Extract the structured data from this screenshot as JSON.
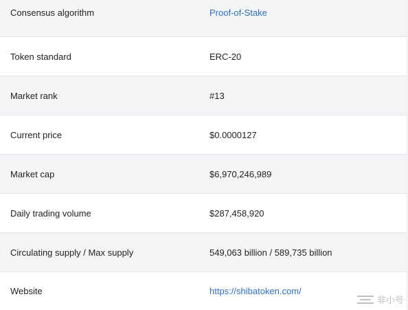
{
  "rows": [
    {
      "label": "Consensus algorithm",
      "value": "Proof-of-Stake",
      "is_link": true
    },
    {
      "label": "Token standard",
      "value": "ERC-20",
      "is_link": false
    },
    {
      "label": "Market rank",
      "value": "#13",
      "is_link": false
    },
    {
      "label": "Current price",
      "value": "$0.0000127",
      "is_link": false
    },
    {
      "label": "Market cap",
      "value": "$6,970,246,989",
      "is_link": false
    },
    {
      "label": "Daily trading volume",
      "value": "$287,458,920",
      "is_link": false
    },
    {
      "label": "Circulating supply / Max supply",
      "value": "549,063 billion / 589,735 billion",
      "is_link": false
    },
    {
      "label": "Website",
      "value": "https://shibatoken.com/",
      "is_link": true
    }
  ],
  "watermark": {
    "text": "非小号",
    "icon": "feixiaohao-logo-icon"
  },
  "colors": {
    "link": "#2f6fc4",
    "shaded_row": "#f4f5f7",
    "border": "#e4e6ea"
  }
}
